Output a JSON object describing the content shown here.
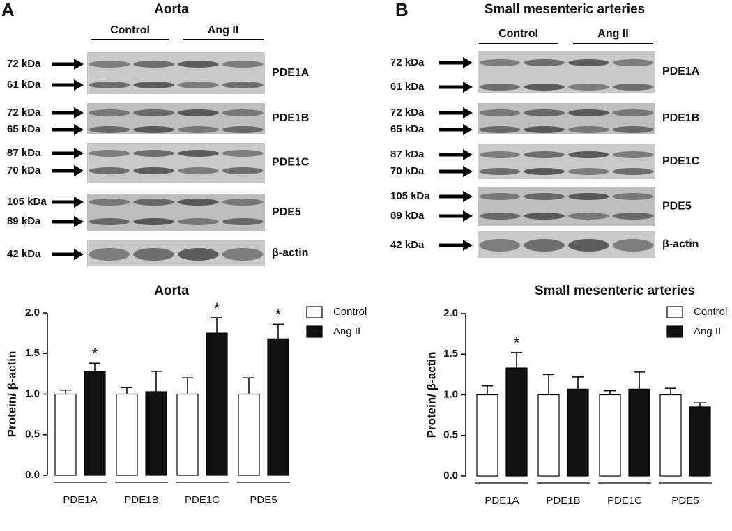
{
  "panels": [
    {
      "letter": "A",
      "title": "Aorta",
      "groups": [
        "Control",
        "Ang II"
      ],
      "rows": [
        {
          "markers": [
            "72 kDa",
            "61 kDa"
          ],
          "protein": "PDE1A"
        },
        {
          "markers": [
            "72 kDa",
            "65 kDa"
          ],
          "protein": "PDE1B"
        },
        {
          "markers": [
            "87 kDa",
            "70 kDa"
          ],
          "protein": "PDE1C"
        },
        {
          "markers": [
            "105 kDa",
            "89 kDa"
          ],
          "protein": "PDE5"
        },
        {
          "markers": [
            "42 kDa"
          ],
          "protein": "β-actin"
        }
      ]
    },
    {
      "letter": "B",
      "title": "Small mesenteric arteries",
      "groups": [
        "Control",
        "Ang II"
      ],
      "rows": [
        {
          "markers": [
            "72 kDa",
            "61 kDa"
          ],
          "protein": "PDE1A"
        },
        {
          "markers": [
            "72 kDa",
            "65 kDa"
          ],
          "protein": "PDE1B"
        },
        {
          "markers": [
            "87 kDa",
            "70 kDa"
          ],
          "protein": "PDE1C"
        },
        {
          "markers": [
            "105 kDa",
            "89 kDa"
          ],
          "protein": "PDE5"
        },
        {
          "markers": [
            "42 kDa"
          ],
          "protein": "β-actin"
        }
      ]
    }
  ],
  "chart_data": [
    {
      "type": "bar",
      "title": "Aorta",
      "y_label": "Protein/ β-actin",
      "categories": [
        "PDE1A",
        "PDE1B",
        "PDE1C",
        "PDE5"
      ],
      "series": [
        {
          "name": "Control",
          "color": "#ffffff",
          "values": [
            1.0,
            1.0,
            1.0,
            1.0
          ],
          "errors": [
            0.05,
            0.08,
            0.2,
            0.2
          ]
        },
        {
          "name": "Ang II",
          "color": "#111111",
          "values": [
            1.28,
            1.03,
            1.75,
            1.68
          ],
          "errors": [
            0.1,
            0.25,
            0.19,
            0.18
          ],
          "significance": [
            "*",
            null,
            "*",
            "*"
          ]
        }
      ],
      "ylim": [
        0,
        2
      ],
      "yticks": [
        {
          "value": 0,
          "label": "0.0"
        },
        {
          "value": 0.5,
          "label": "0.5"
        },
        {
          "value": 1,
          "label": "1.0"
        },
        {
          "value": 1.5,
          "label": "1.5"
        },
        {
          "value": 2,
          "label": "2.0"
        }
      ],
      "legend": "top-right"
    },
    {
      "type": "bar",
      "title": "Small mesenteric arteries",
      "y_label": "Protein/ β-actin",
      "categories": [
        "PDE1A",
        "PDE1B",
        "PDE1C",
        "PDE5"
      ],
      "series": [
        {
          "name": "Control",
          "color": "#ffffff",
          "values": [
            1.0,
            1.0,
            1.0,
            1.0
          ],
          "errors": [
            0.11,
            0.25,
            0.05,
            0.08
          ]
        },
        {
          "name": "Ang II",
          "color": "#111111",
          "values": [
            1.33,
            1.07,
            1.07,
            0.85
          ],
          "errors": [
            0.19,
            0.15,
            0.21,
            0.05
          ],
          "significance": [
            "*",
            null,
            null,
            null
          ]
        }
      ],
      "ylim": [
        0,
        2
      ],
      "yticks": [
        {
          "value": 0,
          "label": "0.0"
        },
        {
          "value": 0.5,
          "label": "0.5"
        },
        {
          "value": 1,
          "label": "1.0"
        },
        {
          "value": 1.5,
          "label": "1.5"
        },
        {
          "value": 2,
          "label": "2.0"
        }
      ],
      "legend": "top-right"
    }
  ]
}
